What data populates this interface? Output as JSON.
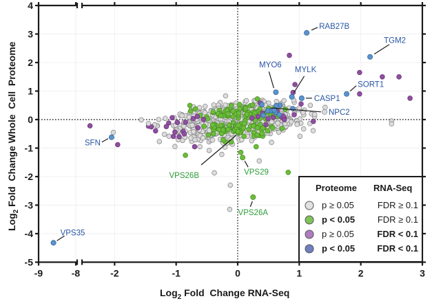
{
  "chart_data": {
    "type": "scatter",
    "title": "",
    "xlabel_main": "Log",
    "xlabel_sub": "2",
    "xlabel_rest": " Fold  Change RNA-Seq",
    "ylabel_main": "Log",
    "ylabel_sub": "2",
    "ylabel_rest": " Fold  Change Whole  Cell  Proteome",
    "xlim": [
      -9,
      3
    ],
    "x_axis_break": [
      -8,
      -2
    ],
    "ylim": [
      -5,
      4
    ],
    "x_ticks": [
      -9,
      -8,
      -2,
      -1,
      0,
      1,
      2,
      3
    ],
    "x_tick_labels": [
      "-9",
      "-8",
      "-2",
      "-1",
      "0",
      "1",
      "2",
      "3"
    ],
    "y_ticks": [
      -5,
      -4,
      -3,
      -2,
      -1,
      0,
      1,
      2,
      3,
      4
    ],
    "y_tick_labels": [
      "-5",
      "-4",
      "-3",
      "-2",
      "-1",
      "0",
      "1",
      "2",
      "3",
      "4"
    ],
    "grid": true,
    "reference_lines": {
      "x": 0,
      "y": 0,
      "style": "dotted"
    },
    "legend": {
      "position": "bottom-right",
      "header_proteome": "Proteome",
      "header_rnaseq": "RNA-Seq",
      "entries": [
        {
          "key": "grey",
          "proteome": "p ≥ 0.05",
          "rnaseq": "FDR ≥ 0.1",
          "proteome_bold": false,
          "rnaseq_bold": false,
          "color": "#e2e2e2"
        },
        {
          "key": "green",
          "proteome": "p < 0.05",
          "rnaseq": "FDR ≥ 0.1",
          "proteome_bold": true,
          "rnaseq_bold": false,
          "color": "#7fc35a"
        },
        {
          "key": "purple",
          "proteome": "p ≥ 0.05",
          "rnaseq": "FDR < 0.1",
          "proteome_bold": false,
          "rnaseq_bold": true,
          "color": "#b07cc0"
        },
        {
          "key": "blue",
          "proteome": "p < 0.05",
          "rnaseq": "FDR < 0.1",
          "proteome_bold": true,
          "rnaseq_bold": true,
          "color": "#6f7fc0"
        }
      ]
    },
    "series_colors": {
      "grey": {
        "fill": "#dcdcdc",
        "stroke": "#8c8c8c"
      },
      "green": {
        "fill": "#6cbd3a",
        "stroke": "#4a8f24"
      },
      "purple": {
        "fill": "#8e4fa0",
        "stroke": "#6d3a7c"
      },
      "blue": {
        "fill": "#5b93cc",
        "stroke": "#35679c"
      }
    },
    "labeled_points": [
      {
        "gene": "RAB27B",
        "x": 1.12,
        "y": 3.04,
        "group": "blue",
        "label_color": "#2a55a5"
      },
      {
        "gene": "TGM2",
        "x": 2.15,
        "y": 2.2,
        "group": "blue",
        "label_color": "#2a55a5"
      },
      {
        "gene": "MYO6",
        "x": 0.62,
        "y": 0.96,
        "group": "blue",
        "label_color": "#2a55a5"
      },
      {
        "gene": "MYLK",
        "x": 0.88,
        "y": 0.8,
        "group": "blue",
        "label_color": "#2a55a5"
      },
      {
        "gene": "CASP1",
        "x": 1.04,
        "y": 0.75,
        "group": "blue",
        "label_color": "#2a55a5"
      },
      {
        "gene": "SORT1",
        "x": 1.77,
        "y": 0.9,
        "group": "blue",
        "label_color": "#2a55a5"
      },
      {
        "gene": "NPC2",
        "x": 1.41,
        "y": 0.27,
        "group": "grey",
        "label_color": "#2a55a5"
      },
      {
        "gene": "SFN",
        "x": -2.05,
        "y": -0.62,
        "group": "blue",
        "label_color": "#2a55a5"
      },
      {
        "gene": "VPS35",
        "x": -8.6,
        "y": -4.32,
        "group": "blue",
        "label_color": "#2a55a5"
      },
      {
        "gene": "VPS26B",
        "x": 0.0,
        "y": -0.5,
        "group": "green",
        "label_color": "#2e9e3a"
      },
      {
        "gene": "VPS29",
        "x": 0.08,
        "y": -1.33,
        "group": "green",
        "label_color": "#2e9e3a"
      },
      {
        "gene": "VPS26A",
        "x": 0.25,
        "y": -2.72,
        "group": "green",
        "label_color": "#2e9e3a"
      }
    ],
    "outlier_points": [
      {
        "x": 0.84,
        "y": 2.25,
        "group": "purple"
      },
      {
        "x": 1.98,
        "y": 1.65,
        "group": "purple"
      },
      {
        "x": 2.35,
        "y": 1.5,
        "group": "purple"
      },
      {
        "x": 2.62,
        "y": 1.5,
        "group": "purple"
      },
      {
        "x": 1.98,
        "y": 0.9,
        "group": "purple"
      },
      {
        "x": 2.8,
        "y": 0.75,
        "group": "purple"
      },
      {
        "x": 0.93,
        "y": 1.23,
        "group": "purple"
      },
      {
        "x": 0.9,
        "y": 0.95,
        "group": "purple"
      },
      {
        "x": 1.03,
        "y": 0.55,
        "group": "purple"
      },
      {
        "x": 2.5,
        "y": -0.05,
        "group": "grey"
      },
      {
        "x": 2.5,
        "y": -0.15,
        "group": "grey"
      },
      {
        "x": 1.2,
        "y": 0.2,
        "group": "grey"
      },
      {
        "x": 1.25,
        "y": 0.18,
        "group": "grey"
      },
      {
        "x": -2.4,
        "y": -0.22,
        "group": "purple"
      },
      {
        "x": -1.95,
        "y": -0.88,
        "group": "purple"
      },
      {
        "x": -2.02,
        "y": -0.45,
        "group": "grey"
      },
      {
        "x": -1.45,
        "y": -0.14,
        "group": "grey"
      },
      {
        "x": -0.95,
        "y": -0.6,
        "group": "purple"
      },
      {
        "x": -0.7,
        "y": -0.95,
        "group": "purple"
      },
      {
        "x": -0.38,
        "y": -1.87,
        "group": "grey"
      },
      {
        "x": -0.12,
        "y": -2.3,
        "group": "grey"
      },
      {
        "x": -0.13,
        "y": -3.15,
        "group": "grey"
      },
      {
        "x": 0.82,
        "y": -1.85,
        "group": "green"
      },
      {
        "x": -0.85,
        "y": -1.25,
        "group": "green"
      },
      {
        "x": 0.05,
        "y": -1.15,
        "group": "green"
      },
      {
        "x": 0.3,
        "y": -0.95,
        "group": "green"
      },
      {
        "x": 0.35,
        "y": -1.45,
        "group": "grey"
      },
      {
        "x": 0.55,
        "y": -0.8,
        "group": "grey"
      }
    ],
    "cluster": {
      "description": "dense cloud of ~1500 proteins centered near origin",
      "x_center": 0.0,
      "y_center": -0.05,
      "x_spread": 0.45,
      "y_spread": 0.28,
      "counts": {
        "grey": 1100,
        "green": 150,
        "purple": 30,
        "blue": 10
      }
    }
  }
}
